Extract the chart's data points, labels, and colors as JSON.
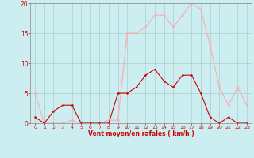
{
  "x": [
    0,
    1,
    2,
    3,
    4,
    5,
    6,
    7,
    8,
    9,
    10,
    11,
    12,
    13,
    14,
    15,
    16,
    17,
    18,
    19,
    20,
    21,
    22,
    23
  ],
  "y_mean": [
    1,
    0,
    2,
    3,
    3,
    0,
    0,
    0,
    0,
    5,
    5,
    6,
    8,
    9,
    7,
    6,
    8,
    8,
    5,
    1,
    0,
    1,
    0,
    0
  ],
  "y_gusts": [
    5,
    0,
    0,
    0,
    0.5,
    0,
    0,
    0,
    0.5,
    0.5,
    15,
    15,
    16,
    18,
    18,
    16,
    18,
    20,
    19,
    13,
    6,
    3,
    6,
    3
  ],
  "mean_color": "#cc0000",
  "gusts_color": "#ffaaaa",
  "bg_color": "#cceef0",
  "grid_color": "#aacccc",
  "spine_color": "#888888",
  "xlabel": "Vent moyen/en rafales ( km/h )",
  "xlabel_color": "#cc0000",
  "tick_color": "#cc0000",
  "ylim": [
    0,
    20
  ],
  "yticks": [
    0,
    5,
    10,
    15,
    20
  ],
  "xticks": [
    0,
    1,
    2,
    3,
    4,
    5,
    6,
    7,
    8,
    9,
    10,
    11,
    12,
    13,
    14,
    15,
    16,
    17,
    18,
    19,
    20,
    21,
    22,
    23
  ]
}
